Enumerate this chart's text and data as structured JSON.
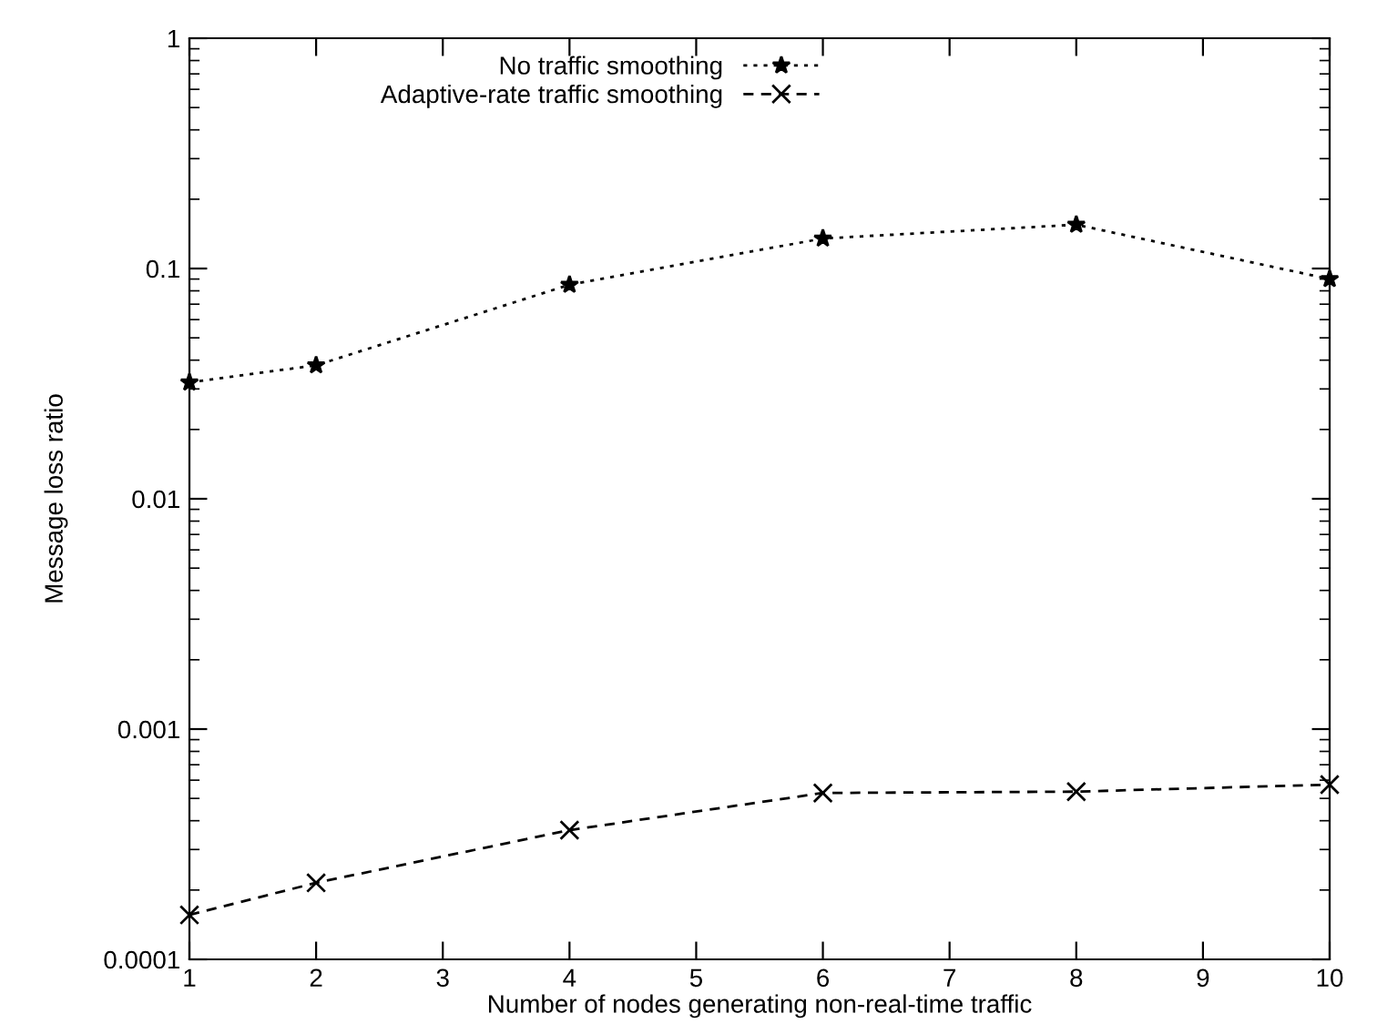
{
  "chart_data": {
    "type": "line",
    "xlabel": "Number of nodes generating non-real-time traffic",
    "ylabel": "Message loss ratio",
    "x": [
      1,
      2,
      4,
      6,
      8,
      10
    ],
    "log": "y",
    "xlim": [
      1,
      10
    ],
    "xticks": [
      1,
      2,
      3,
      4,
      5,
      6,
      7,
      8,
      9,
      10
    ],
    "ylim": [
      0.0001,
      1
    ],
    "yticks": [
      {
        "value": 0.0001,
        "label": "0.0001"
      },
      {
        "value": 0.001,
        "label": "0.001"
      },
      {
        "value": 0.01,
        "label": "0.01"
      },
      {
        "value": 0.1,
        "label": "0.1"
      },
      {
        "value": 1,
        "label": "1"
      }
    ],
    "grid": false,
    "legend": "top",
    "series": [
      {
        "name": "No traffic smoothing",
        "color": "#000000",
        "marker": "star",
        "line_style": "dotted",
        "values": [
          0.032,
          0.038,
          0.085,
          0.135,
          0.155,
          0.09
        ]
      },
      {
        "name": "Adaptive-rate traffic smoothing",
        "color": "#000000",
        "marker": "cross",
        "line_style": "dashed",
        "values": [
          0.000156,
          0.000215,
          0.000364,
          0.000528,
          0.000535,
          0.000574
        ]
      }
    ]
  }
}
